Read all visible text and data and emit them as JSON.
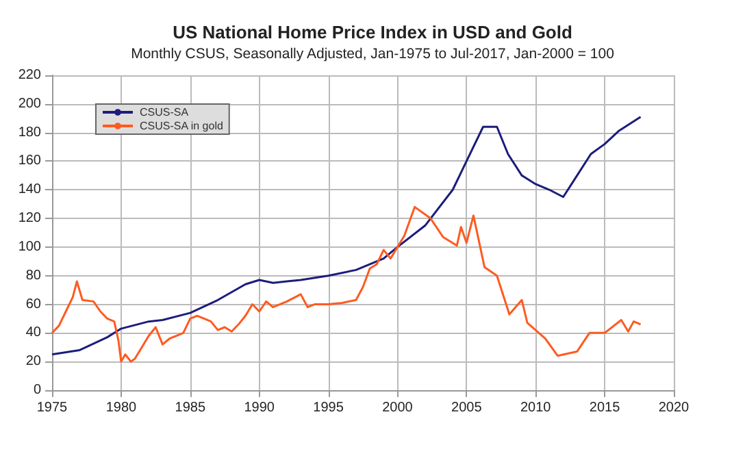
{
  "chart_data": {
    "type": "line",
    "title": "US National Home Price Index in USD and Gold",
    "subtitle": "Monthly CSUS, Seasonally Adjusted, Jan-1975 to Jul-2017, Jan-2000 = 100",
    "xlim": [
      1975,
      2020
    ],
    "xticks": [
      1975,
      1980,
      1985,
      1990,
      1995,
      2000,
      2005,
      2010,
      2015,
      2020
    ],
    "ylim": [
      0,
      220
    ],
    "yticks": [
      0,
      20,
      40,
      60,
      80,
      100,
      120,
      140,
      160,
      180,
      200,
      220
    ],
    "grid": true,
    "legend": "top left",
    "marker": "none",
    "line_style": "solid",
    "series": [
      {
        "name": "CSUS-SA",
        "color": "#1c1c7c",
        "x": [
          1975,
          1977,
          1979,
          1980,
          1982,
          1983,
          1985,
          1987,
          1989,
          1990,
          1991,
          1992,
          1993,
          1995,
          1997,
          1999,
          2000,
          2002,
          2004,
          2005,
          2006.2,
          2007.2,
          2008,
          2009,
          2010,
          2011,
          2012,
          2013,
          2014,
          2015,
          2016,
          2017.6
        ],
        "values": [
          25,
          28,
          37,
          43,
          48,
          49,
          54,
          63,
          74,
          77,
          75,
          76,
          77,
          80,
          84,
          92,
          100,
          115,
          140,
          160,
          184,
          184,
          165,
          150,
          144,
          140,
          135,
          150,
          165,
          172,
          181,
          191
        ]
      },
      {
        "name": "CSUS-SA in gold",
        "color": "#ff5a1f",
        "x": [
          1975,
          1975.5,
          1976,
          1976.5,
          1976.8,
          1977.2,
          1978,
          1978.5,
          1979,
          1979.5,
          1979.8,
          1980,
          1980.3,
          1980.7,
          1981,
          1981.5,
          1982,
          1982.5,
          1983,
          1983.5,
          1984,
          1984.5,
          1985,
          1985.5,
          1986,
          1986.5,
          1987,
          1987.5,
          1988,
          1988.5,
          1989,
          1989.5,
          1990,
          1990.5,
          1991,
          1992,
          1993,
          1993.5,
          1994,
          1995,
          1996,
          1997,
          1997.5,
          1998,
          1998.5,
          1999,
          1999.5,
          2000,
          2000.5,
          2001.25,
          2002.4,
          2003.3,
          2004.3,
          2004.6,
          2005,
          2005.5,
          2006.3,
          2007.2,
          2008.1,
          2009,
          2009.4,
          2010.7,
          2011.6,
          2013,
          2013.9,
          2015,
          2016.2,
          2016.7,
          2017.1,
          2017.6
        ],
        "values": [
          40,
          45,
          55,
          65,
          76,
          63,
          62,
          55,
          50,
          48,
          35,
          20,
          25,
          20,
          22,
          30,
          38,
          44,
          32,
          36,
          38,
          40,
          50,
          52,
          50,
          48,
          42,
          44,
          41,
          46,
          52,
          60,
          55,
          62,
          58,
          62,
          67,
          58,
          60,
          60,
          61,
          63,
          72,
          85,
          88,
          98,
          92,
          100,
          108,
          128,
          120,
          107,
          101,
          114,
          103,
          122,
          86,
          80,
          53,
          63,
          47,
          36,
          24,
          27,
          40,
          40,
          49,
          41,
          48,
          46
        ]
      }
    ]
  }
}
